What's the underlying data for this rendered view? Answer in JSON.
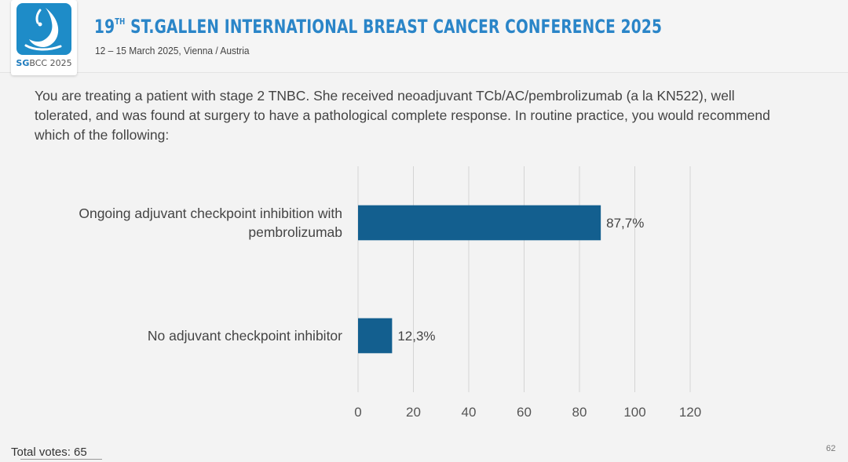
{
  "header": {
    "logo_label_bold": "SG",
    "logo_label_rest": "BCC 2025",
    "title_prefix": "19",
    "title_ordinal": "TH",
    "title_rest": " ST.GALLEN INTERNATIONAL BREAST CANCER CONFERENCE 2025",
    "subtitle": "12 – 15 March 2025, Vienna / Austria",
    "brand_color": "#2a85c8"
  },
  "question": "You are treating a patient with stage 2 TNBC.  She received neoadjuvant TCb/AC/pembrolizumab (a la KN522), well tolerated, and was found at surgery to have a pathological complete response.  In routine practice, you would recommend which of the following:",
  "chart_data": {
    "type": "bar",
    "orientation": "horizontal",
    "categories": [
      [
        "Ongoing adjuvant checkpoint inhibition with",
        "pembrolizumab"
      ],
      [
        "No adjuvant checkpoint inhibitor"
      ]
    ],
    "values": [
      87.7,
      12.3
    ],
    "data_labels": [
      "87,7%",
      "12,3%"
    ],
    "x_ticks": [
      0,
      20,
      40,
      60,
      80,
      100,
      120
    ],
    "xlim": [
      0,
      120
    ],
    "grid": true,
    "bar_color": "#135f8f"
  },
  "footer": {
    "total_votes": "Total votes: 65",
    "slide_number": "62"
  }
}
